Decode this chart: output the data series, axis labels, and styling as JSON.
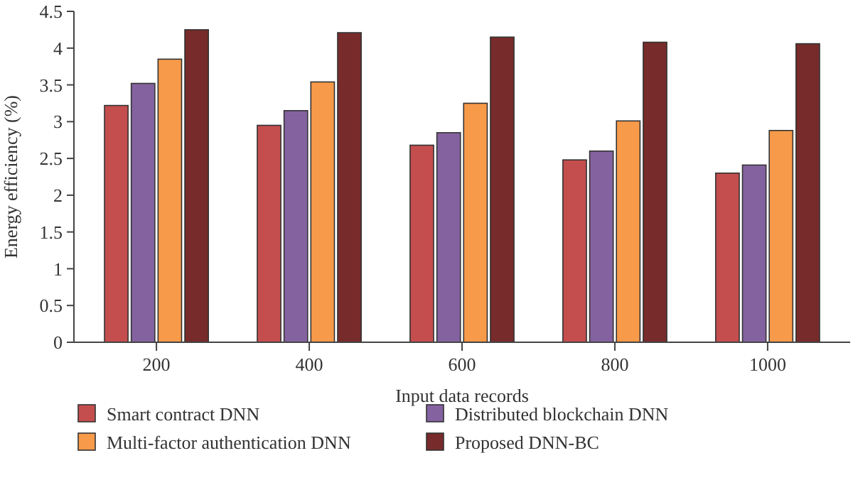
{
  "chart_data": {
    "type": "bar",
    "xlabel": "Input data records",
    "ylabel": "Energy efficiency (%)",
    "categories": [
      "200",
      "400",
      "600",
      "800",
      "1000"
    ],
    "series": [
      {
        "name": "Smart contract DNN",
        "color": "#c44e4e",
        "values": [
          3.22,
          2.95,
          2.68,
          2.48,
          2.3
        ]
      },
      {
        "name": "Distributed blockchain DNN",
        "color": "#8462a0",
        "values": [
          3.52,
          3.15,
          2.85,
          2.6,
          2.41
        ]
      },
      {
        "name": "Multi-factor authentication DNN",
        "color": "#f79a4a",
        "values": [
          3.85,
          3.54,
          3.25,
          3.01,
          2.88
        ]
      },
      {
        "name": "Proposed DNN-BC",
        "color": "#772b2a",
        "values": [
          4.25,
          4.21,
          4.15,
          4.08,
          4.06
        ]
      }
    ],
    "ylim": [
      0,
      4.5
    ],
    "yticks": [
      0,
      0.5,
      1,
      1.5,
      2,
      2.5,
      3,
      3.5,
      4,
      4.5
    ],
    "legend": "bottom"
  }
}
